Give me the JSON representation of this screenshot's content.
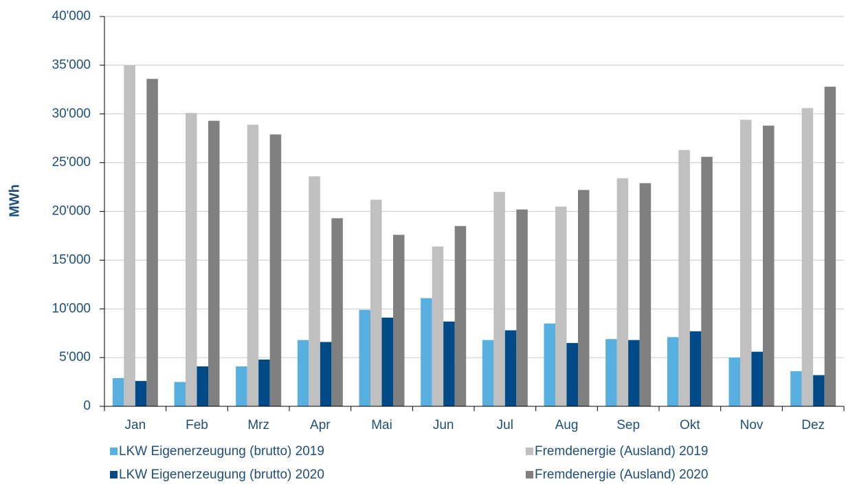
{
  "chart_data": {
    "type": "bar",
    "y_label": "MWh",
    "categories": [
      "Jan",
      "Feb",
      "Mrz",
      "Apr",
      "Mai",
      "Jun",
      "Jul",
      "Aug",
      "Sep",
      "Okt",
      "Nov",
      "Dez"
    ],
    "series": [
      {
        "name": "LKW Eigenerzeugung (brutto) 2019",
        "color": "#58b0e0",
        "values": [
          2900,
          2500,
          4100,
          6800,
          9900,
          11100,
          6800,
          8500,
          6900,
          7100,
          5000,
          3600
        ]
      },
      {
        "name": "Fremdenergie (Ausland) 2019",
        "color": "#c0c0c0",
        "values": [
          35000,
          30100,
          28900,
          23600,
          21200,
          16400,
          22000,
          20500,
          23400,
          26300,
          29400,
          30600
        ]
      },
      {
        "name": "LKW Eigenerzeugung (brutto) 2020",
        "color": "#004a87",
        "values": [
          2600,
          4100,
          4800,
          6600,
          9100,
          8700,
          7800,
          6500,
          6800,
          7700,
          5600,
          3200
        ]
      },
      {
        "name": "Fremdenergie (Ausland) 2020",
        "color": "#808080",
        "values": [
          33600,
          29300,
          27900,
          19300,
          17600,
          18500,
          20200,
          22200,
          22900,
          25600,
          28800,
          32800
        ]
      }
    ],
    "ylim": [
      0,
      40000
    ],
    "yticks": [
      0,
      {
        "value": 5000,
        "label": "5'000"
      },
      {
        "value": 10000,
        "label": "10'000"
      },
      {
        "value": 15000,
        "label": "15'000"
      },
      {
        "value": 20000,
        "label": "20'000"
      },
      {
        "value": 25000,
        "label": "25'000"
      },
      {
        "value": 30000,
        "label": "30'000"
      },
      {
        "value": 35000,
        "label": "35'000"
      },
      {
        "value": 40000,
        "label": "40'000"
      }
    ],
    "grid": true
  }
}
